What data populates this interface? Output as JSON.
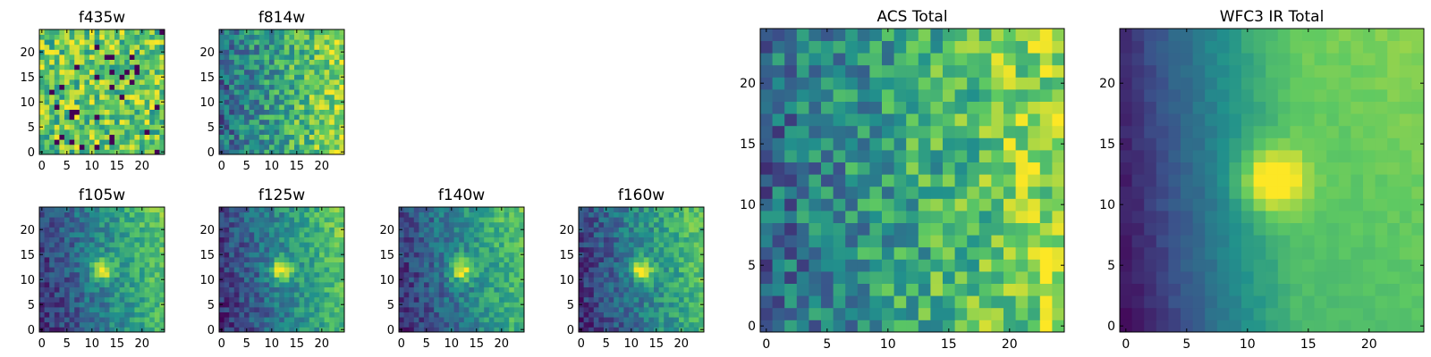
{
  "figure": {
    "colormap": "viridis",
    "stops": [
      "#440154",
      "#3b528b",
      "#21918c",
      "#5ec962",
      "#fde725"
    ]
  },
  "chart_data": [
    {
      "id": "f435w",
      "type": "heatmap",
      "title": "f435w",
      "grid": [
        25,
        25
      ],
      "xlim": [
        -0.5,
        24.5
      ],
      "ylim": [
        -0.5,
        24.5
      ],
      "xticks": [
        0,
        5,
        10,
        15,
        20
      ],
      "yticks": [
        0,
        5,
        10,
        15,
        20
      ],
      "pattern": "uniform-noise",
      "source_peak": null,
      "seed": 11
    },
    {
      "id": "f814w",
      "type": "heatmap",
      "title": "f814w",
      "grid": [
        25,
        25
      ],
      "xlim": [
        -0.5,
        24.5
      ],
      "ylim": [
        -0.5,
        24.5
      ],
      "xticks": [
        0,
        5,
        10,
        15,
        20
      ],
      "yticks": [
        0,
        5,
        10,
        15,
        20
      ],
      "pattern": "left-dark-right-bright-noise",
      "source_peak": null,
      "seed": 23
    },
    {
      "id": "f105w",
      "type": "heatmap",
      "title": "f105w",
      "grid": [
        25,
        25
      ],
      "xlim": [
        -0.5,
        24.5
      ],
      "ylim": [
        -0.5,
        24.5
      ],
      "xticks": [
        0,
        5,
        10,
        15,
        20
      ],
      "yticks": [
        0,
        5,
        10,
        15,
        20
      ],
      "pattern": "gradient-with-source",
      "source_peak": [
        12,
        12
      ],
      "seed": 37
    },
    {
      "id": "f125w",
      "type": "heatmap",
      "title": "f125w",
      "grid": [
        25,
        25
      ],
      "xlim": [
        -0.5,
        24.5
      ],
      "ylim": [
        -0.5,
        24.5
      ],
      "xticks": [
        0,
        5,
        10,
        15,
        20
      ],
      "yticks": [
        0,
        5,
        10,
        15,
        20
      ],
      "pattern": "gradient-with-source",
      "source_peak": [
        12,
        12
      ],
      "seed": 41
    },
    {
      "id": "f140w",
      "type": "heatmap",
      "title": "f140w",
      "grid": [
        25,
        25
      ],
      "xlim": [
        -0.5,
        24.5
      ],
      "ylim": [
        -0.5,
        24.5
      ],
      "xticks": [
        0,
        5,
        10,
        15,
        20
      ],
      "yticks": [
        0,
        5,
        10,
        15,
        20
      ],
      "pattern": "gradient-with-source",
      "source_peak": [
        12,
        12
      ],
      "seed": 53
    },
    {
      "id": "f160w",
      "type": "heatmap",
      "title": "f160w",
      "grid": [
        25,
        25
      ],
      "xlim": [
        -0.5,
        24.5
      ],
      "ylim": [
        -0.5,
        24.5
      ],
      "xticks": [
        0,
        5,
        10,
        15,
        20
      ],
      "yticks": [
        0,
        5,
        10,
        15,
        20
      ],
      "pattern": "gradient-with-source",
      "source_peak": [
        12,
        12
      ],
      "seed": 67
    },
    {
      "id": "acs-total",
      "type": "heatmap",
      "title": "ACS Total",
      "grid": [
        25,
        25
      ],
      "xlim": [
        -0.5,
        24.5
      ],
      "ylim": [
        -0.5,
        24.5
      ],
      "xticks": [
        0,
        5,
        10,
        15,
        20
      ],
      "yticks": [
        0,
        5,
        10,
        15,
        20
      ],
      "pattern": "left-dark-right-bright-noise",
      "source_peak": null,
      "seed": 79
    },
    {
      "id": "wfc3-ir-total",
      "type": "heatmap",
      "title": "WFC3 IR Total",
      "grid": [
        25,
        25
      ],
      "xlim": [
        -0.5,
        24.5
      ],
      "ylim": [
        -0.5,
        24.5
      ],
      "xticks": [
        0,
        5,
        10,
        15,
        20
      ],
      "yticks": [
        0,
        5,
        10,
        15,
        20
      ],
      "pattern": "smooth-gradient-with-source",
      "source_peak": [
        12,
        12
      ],
      "seed": 97
    }
  ]
}
